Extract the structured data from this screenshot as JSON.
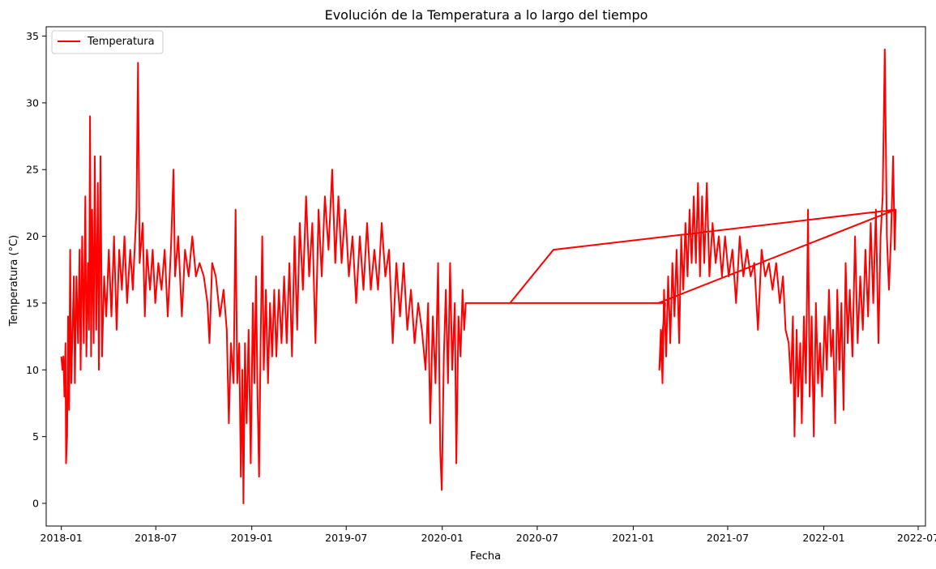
{
  "chart_data": {
    "type": "line",
    "title": "Evolución de la Temperatura a lo largo del tiempo",
    "xlabel": "Fecha",
    "ylabel": "Temperatura (°C)",
    "x_ticks": [
      "2018-01",
      "2018-07",
      "2019-01",
      "2019-07",
      "2020-01",
      "2020-07",
      "2021-01",
      "2021-07",
      "2022-01",
      "2022-07"
    ],
    "y_ticks": [
      0,
      5,
      10,
      15,
      20,
      25,
      30,
      35
    ],
    "xlim": [
      "2017-12-03",
      "2022-07-15"
    ],
    "ylim": [
      -1.7,
      35.7
    ],
    "grid": false,
    "legend_position": "top-left",
    "series": [
      {
        "name": "Temperatura",
        "color": "#ff0000",
        "points": [
          [
            "2018-01-01",
            11
          ],
          [
            "2018-01-03",
            10
          ],
          [
            "2018-01-05",
            11
          ],
          [
            "2018-01-07",
            8
          ],
          [
            "2018-01-09",
            12
          ],
          [
            "2018-01-10",
            3
          ],
          [
            "2018-01-12",
            5
          ],
          [
            "2018-01-14",
            14
          ],
          [
            "2018-01-16",
            7
          ],
          [
            "2018-01-18",
            19
          ],
          [
            "2018-01-20",
            9
          ],
          [
            "2018-01-22",
            12
          ],
          [
            "2018-01-25",
            17
          ],
          [
            "2018-01-27",
            9
          ],
          [
            "2018-01-30",
            17
          ],
          [
            "2018-02-02",
            12
          ],
          [
            "2018-02-05",
            19
          ],
          [
            "2018-02-07",
            10
          ],
          [
            "2018-02-10",
            20
          ],
          [
            "2018-02-13",
            12
          ],
          [
            "2018-02-16",
            23
          ],
          [
            "2018-02-18",
            11
          ],
          [
            "2018-02-21",
            18
          ],
          [
            "2018-02-23",
            13
          ],
          [
            "2018-02-25",
            29
          ],
          [
            "2018-02-27",
            11
          ],
          [
            "2018-03-01",
            22
          ],
          [
            "2018-03-04",
            12
          ],
          [
            "2018-03-06",
            26
          ],
          [
            "2018-03-09",
            13
          ],
          [
            "2018-03-12",
            24
          ],
          [
            "2018-03-14",
            10
          ],
          [
            "2018-03-17",
            26
          ],
          [
            "2018-03-20",
            11
          ],
          [
            "2018-03-24",
            17
          ],
          [
            "2018-03-28",
            14
          ],
          [
            "2018-04-02",
            19
          ],
          [
            "2018-04-07",
            14
          ],
          [
            "2018-04-12",
            20
          ],
          [
            "2018-04-17",
            13
          ],
          [
            "2018-04-22",
            19
          ],
          [
            "2018-04-27",
            16
          ],
          [
            "2018-05-02",
            20
          ],
          [
            "2018-05-07",
            15
          ],
          [
            "2018-05-13",
            19
          ],
          [
            "2018-05-18",
            16
          ],
          [
            "2018-05-25",
            22
          ],
          [
            "2018-05-28",
            33
          ],
          [
            "2018-05-31",
            18
          ],
          [
            "2018-06-06",
            21
          ],
          [
            "2018-06-10",
            14
          ],
          [
            "2018-06-14",
            19
          ],
          [
            "2018-06-20",
            16
          ],
          [
            "2018-06-25",
            19
          ],
          [
            "2018-06-30",
            15
          ],
          [
            "2018-07-06",
            18
          ],
          [
            "2018-07-12",
            16
          ],
          [
            "2018-07-18",
            19
          ],
          [
            "2018-07-24",
            14
          ],
          [
            "2018-07-30",
            19
          ],
          [
            "2018-08-04",
            25
          ],
          [
            "2018-08-07",
            17
          ],
          [
            "2018-08-13",
            20
          ],
          [
            "2018-08-20",
            14
          ],
          [
            "2018-08-26",
            19
          ],
          [
            "2018-09-02",
            17
          ],
          [
            "2018-09-09",
            20
          ],
          [
            "2018-09-16",
            17
          ],
          [
            "2018-09-23",
            18
          ],
          [
            "2018-10-01",
            17
          ],
          [
            "2018-10-08",
            15
          ],
          [
            "2018-10-12",
            12
          ],
          [
            "2018-10-17",
            18
          ],
          [
            "2018-10-24",
            17
          ],
          [
            "2018-11-01",
            14
          ],
          [
            "2018-11-08",
            16
          ],
          [
            "2018-11-14",
            13
          ],
          [
            "2018-11-18",
            6
          ],
          [
            "2018-11-22",
            12
          ],
          [
            "2018-11-27",
            9
          ],
          [
            "2018-12-01",
            22
          ],
          [
            "2018-12-04",
            9
          ],
          [
            "2018-12-08",
            12
          ],
          [
            "2018-12-11",
            2
          ],
          [
            "2018-12-14",
            10
          ],
          [
            "2018-12-16",
            0
          ],
          [
            "2018-12-19",
            12
          ],
          [
            "2018-12-22",
            6
          ],
          [
            "2018-12-26",
            13
          ],
          [
            "2018-12-30",
            3
          ],
          [
            "2019-01-03",
            15
          ],
          [
            "2019-01-06",
            9
          ],
          [
            "2019-01-09",
            17
          ],
          [
            "2019-01-12",
            8
          ],
          [
            "2019-01-15",
            2
          ],
          [
            "2019-01-18",
            12
          ],
          [
            "2019-01-21",
            20
          ],
          [
            "2019-01-24",
            10
          ],
          [
            "2019-01-28",
            16
          ],
          [
            "2019-02-01",
            9
          ],
          [
            "2019-02-05",
            15
          ],
          [
            "2019-02-09",
            11
          ],
          [
            "2019-02-13",
            16
          ],
          [
            "2019-02-17",
            11
          ],
          [
            "2019-02-22",
            16
          ],
          [
            "2019-02-27",
            12
          ],
          [
            "2019-03-04",
            17
          ],
          [
            "2019-03-09",
            12
          ],
          [
            "2019-03-14",
            18
          ],
          [
            "2019-03-19",
            11
          ],
          [
            "2019-03-24",
            20
          ],
          [
            "2019-03-29",
            13
          ],
          [
            "2019-04-03",
            21
          ],
          [
            "2019-04-09",
            16
          ],
          [
            "2019-04-15",
            23
          ],
          [
            "2019-04-21",
            17
          ],
          [
            "2019-04-27",
            21
          ],
          [
            "2019-05-03",
            12
          ],
          [
            "2019-05-09",
            22
          ],
          [
            "2019-05-15",
            17
          ],
          [
            "2019-05-21",
            23
          ],
          [
            "2019-05-28",
            19
          ],
          [
            "2019-06-04",
            25
          ],
          [
            "2019-06-10",
            18
          ],
          [
            "2019-06-16",
            23
          ],
          [
            "2019-06-22",
            18
          ],
          [
            "2019-06-29",
            22
          ],
          [
            "2019-07-06",
            17
          ],
          [
            "2019-07-13",
            20
          ],
          [
            "2019-07-20",
            15
          ],
          [
            "2019-07-27",
            20
          ],
          [
            "2019-08-03",
            16
          ],
          [
            "2019-08-10",
            21
          ],
          [
            "2019-08-17",
            16
          ],
          [
            "2019-08-24",
            19
          ],
          [
            "2019-08-31",
            16
          ],
          [
            "2019-09-07",
            21
          ],
          [
            "2019-09-14",
            17
          ],
          [
            "2019-09-21",
            19
          ],
          [
            "2019-09-28",
            12
          ],
          [
            "2019-10-05",
            18
          ],
          [
            "2019-10-12",
            14
          ],
          [
            "2019-10-19",
            18
          ],
          [
            "2019-10-26",
            13
          ],
          [
            "2019-11-02",
            16
          ],
          [
            "2019-11-09",
            12
          ],
          [
            "2019-11-16",
            15
          ],
          [
            "2019-11-23",
            13
          ],
          [
            "2019-11-30",
            10
          ],
          [
            "2019-12-05",
            15
          ],
          [
            "2019-12-09",
            6
          ],
          [
            "2019-12-14",
            14
          ],
          [
            "2019-12-19",
            9
          ],
          [
            "2019-12-24",
            18
          ],
          [
            "2019-12-28",
            4
          ],
          [
            "2019-12-31",
            1
          ],
          [
            "2020-01-04",
            11
          ],
          [
            "2020-01-08",
            16
          ],
          [
            "2020-01-12",
            9
          ],
          [
            "2020-01-16",
            18
          ],
          [
            "2020-01-20",
            10
          ],
          [
            "2020-01-25",
            15
          ],
          [
            "2020-01-28",
            3
          ],
          [
            "2020-02-01",
            14
          ],
          [
            "2020-02-05",
            11
          ],
          [
            "2020-02-09",
            16
          ],
          [
            "2020-02-12",
            13
          ],
          [
            "2020-02-15",
            15
          ],
          [
            "2020-03-01",
            15
          ],
          [
            "2020-06-20",
            15
          ],
          [
            "2020-07-01",
            15
          ],
          [
            "2021-01-01",
            15
          ],
          [
            "2021-03-03",
            15
          ],
          [
            "2021-02-20",
            10
          ],
          [
            "2021-02-23",
            13
          ],
          [
            "2021-02-26",
            9
          ],
          [
            "2021-03-01",
            16
          ],
          [
            "2021-03-05",
            11
          ],
          [
            "2021-03-09",
            17
          ],
          [
            "2021-03-13",
            12
          ],
          [
            "2021-03-17",
            18
          ],
          [
            "2021-03-21",
            14
          ],
          [
            "2021-03-25",
            19
          ],
          [
            "2021-03-30",
            12
          ],
          [
            "2021-04-03",
            20
          ],
          [
            "2021-04-07",
            16
          ],
          [
            "2021-04-11",
            21
          ],
          [
            "2021-04-15",
            17
          ],
          [
            "2021-04-19",
            22
          ],
          [
            "2021-04-23",
            18
          ],
          [
            "2021-04-27",
            23
          ],
          [
            "2021-05-01",
            18
          ],
          [
            "2021-05-05",
            24
          ],
          [
            "2021-05-09",
            17
          ],
          [
            "2021-05-13",
            23
          ],
          [
            "2021-05-17",
            18
          ],
          [
            "2021-05-22",
            24
          ],
          [
            "2021-05-27",
            17
          ],
          [
            "2021-06-02",
            21
          ],
          [
            "2021-06-08",
            18
          ],
          [
            "2021-06-14",
            20
          ],
          [
            "2021-06-20",
            17
          ],
          [
            "2021-06-26",
            20
          ],
          [
            "2021-07-03",
            17
          ],
          [
            "2021-07-10",
            19
          ],
          [
            "2021-07-17",
            15
          ],
          [
            "2021-07-24",
            20
          ],
          [
            "2021-07-31",
            17
          ],
          [
            "2021-08-07",
            19
          ],
          [
            "2021-08-14",
            17
          ],
          [
            "2021-08-21",
            18
          ],
          [
            "2021-08-28",
            13
          ],
          [
            "2021-09-04",
            19
          ],
          [
            "2021-09-11",
            17
          ],
          [
            "2021-09-18",
            18
          ],
          [
            "2021-09-25",
            16
          ],
          [
            "2021-10-02",
            18
          ],
          [
            "2021-10-09",
            15
          ],
          [
            "2021-10-15",
            17
          ],
          [
            "2021-10-20",
            13
          ],
          [
            "2021-10-26",
            12
          ],
          [
            "2021-10-30",
            9
          ],
          [
            "2021-11-03",
            14
          ],
          [
            "2021-11-06",
            5
          ],
          [
            "2021-11-10",
            13
          ],
          [
            "2021-11-13",
            8
          ],
          [
            "2021-11-17",
            12
          ],
          [
            "2021-11-20",
            6
          ],
          [
            "2021-11-24",
            14
          ],
          [
            "2021-11-28",
            9
          ],
          [
            "2021-12-02",
            22
          ],
          [
            "2021-12-05",
            8
          ],
          [
            "2021-12-09",
            14
          ],
          [
            "2021-12-13",
            5
          ],
          [
            "2021-12-17",
            15
          ],
          [
            "2021-12-21",
            9
          ],
          [
            "2021-12-25",
            12
          ],
          [
            "2021-12-29",
            8
          ],
          [
            "2022-01-03",
            14
          ],
          [
            "2022-01-07",
            10
          ],
          [
            "2022-01-11",
            16
          ],
          [
            "2022-01-15",
            11
          ],
          [
            "2022-01-19",
            13
          ],
          [
            "2022-01-23",
            6
          ],
          [
            "2022-01-27",
            16
          ],
          [
            "2022-01-31",
            10
          ],
          [
            "2022-02-04",
            15
          ],
          [
            "2022-02-08",
            7
          ],
          [
            "2022-02-12",
            18
          ],
          [
            "2022-02-16",
            12
          ],
          [
            "2022-02-20",
            16
          ],
          [
            "2022-02-25",
            11
          ],
          [
            "2022-03-02",
            20
          ],
          [
            "2022-03-07",
            12
          ],
          [
            "2022-03-12",
            17
          ],
          [
            "2022-03-17",
            13
          ],
          [
            "2022-03-22",
            19
          ],
          [
            "2022-03-27",
            14
          ],
          [
            "2022-04-01",
            21
          ],
          [
            "2022-04-06",
            15
          ],
          [
            "2022-04-11",
            22
          ],
          [
            "2022-04-16",
            12
          ],
          [
            "2022-04-20",
            20
          ],
          [
            "2022-04-24",
            23
          ],
          [
            "2022-04-28",
            34
          ],
          [
            "2022-05-02",
            20
          ],
          [
            "2022-05-06",
            16
          ],
          [
            "2022-05-10",
            20
          ],
          [
            "2022-05-14",
            26
          ],
          [
            "2022-05-17",
            19
          ],
          [
            "2022-05-19",
            22
          ],
          [
            "2021-02-18",
            15
          ],
          [
            "2020-05-10",
            15
          ],
          [
            "2020-08-01",
            19
          ],
          [
            "2022-05-19",
            22
          ]
        ]
      }
    ]
  }
}
